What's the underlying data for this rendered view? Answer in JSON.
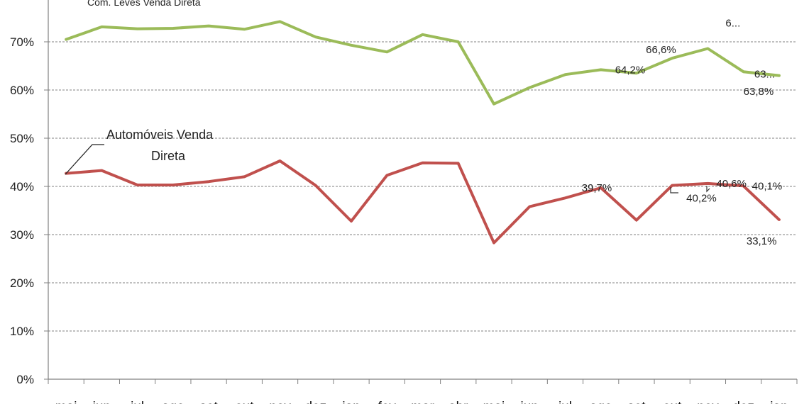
{
  "chart_data": {
    "type": "line",
    "categories": [
      "mai",
      "jun",
      "jul",
      "ago",
      "set",
      "out",
      "nov",
      "dez",
      "jan",
      "fev",
      "mar",
      "abr",
      "mai",
      "jun",
      "jul",
      "ago",
      "set",
      "out",
      "nov",
      "dez",
      "jan"
    ],
    "ylim": [
      0,
      0.75
    ],
    "yticks": [
      0,
      0.1,
      0.2,
      0.3,
      0.4,
      0.5,
      0.6,
      0.7
    ],
    "ytick_labels": [
      "0%",
      "10%",
      "20%",
      "30%",
      "40%",
      "50%",
      "60%",
      "70%"
    ],
    "grid": true,
    "series": [
      {
        "name": "Com. Leves Venda Direta",
        "color": "#9bbb59",
        "values": [
          0.705,
          0.731,
          0.727,
          0.728,
          0.733,
          0.726,
          0.742,
          0.71,
          0.693,
          0.679,
          0.715,
          0.7,
          0.571,
          0.605,
          0.632,
          0.642,
          0.635,
          0.666,
          0.686,
          0.638,
          0.63
        ],
        "labels": [
          {
            "index": 15,
            "text": "64,2%"
          },
          {
            "index": 17,
            "text": "66,6%"
          },
          {
            "index": 18,
            "text": "6..."
          },
          {
            "index": 19,
            "text": "63,8%"
          },
          {
            "index": 20,
            "text": "63..."
          }
        ]
      },
      {
        "name": "Automóveis Venda Direta",
        "name_lines": [
          "Automóveis Venda",
          "Direta"
        ],
        "color": "#c0504d",
        "values": [
          0.427,
          0.433,
          0.403,
          0.403,
          0.41,
          0.42,
          0.453,
          0.402,
          0.328,
          0.423,
          0.449,
          0.448,
          0.283,
          0.358,
          0.376,
          0.397,
          0.33,
          0.402,
          0.406,
          0.401,
          0.331
        ],
        "labels": [
          {
            "index": 15,
            "text": "39,7%"
          },
          {
            "index": 17,
            "text": "40,2%"
          },
          {
            "index": 18,
            "text": "40,6%"
          },
          {
            "index": 19,
            "text": "40,1%"
          },
          {
            "index": 20,
            "text": "33,1%"
          }
        ]
      }
    ]
  }
}
